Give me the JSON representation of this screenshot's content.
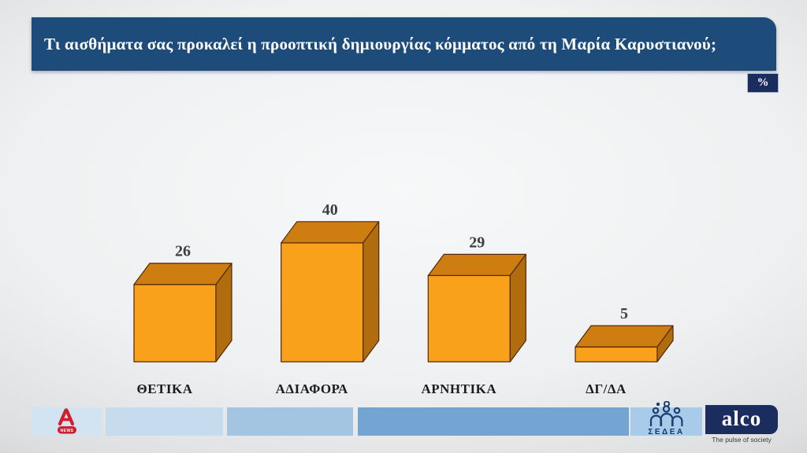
{
  "header": {
    "title": "Τι αισθήματα σας προκαλεί η προοπτική δημιουργίας κόμματος από τη Μαρία Καρυστιανού;",
    "unit_badge": "%"
  },
  "chart_data": {
    "type": "bar",
    "style": "3d-box-bars",
    "title": "Τι αισθήματα σας προκαλεί η προοπτική δημιουργίας κόμματος από τη Μαρία Καρυστιανού;",
    "unit": "%",
    "categories": [
      "ΘΕΤΙΚΑ",
      "ΑΔΙΑΦΟΡΑ",
      "ΑΡΝΗΤΙΚΑ",
      "ΔΓ/ΔΑ"
    ],
    "values": [
      26,
      40,
      29,
      5
    ],
    "value_labels_shown": true,
    "axis": "none",
    "grid": false,
    "legend": "none",
    "bar_color_front": "#F9A11B",
    "bar_color_top": "#CE7D10",
    "bar_color_side": "#B06C0D",
    "bar_outline": "#53290A",
    "value_label_color": "#3E3E3E",
    "category_label_color": "#1C1C1C"
  },
  "footer": {
    "alpha_news_label": "NEWS",
    "sedea_label": "ΣΕΔΕΑ",
    "alco_label": "alco",
    "alco_tagline": "The pulse of society"
  },
  "colors": {
    "header_bg": "#1E4C7A",
    "badge_bg": "#1B2C5F",
    "alco_bg": "#1B2C5F",
    "alpha_red": "#CF1F2E",
    "sedea_navy": "#1D3E6E",
    "footer_segments": [
      "#D2E3F2",
      "#C6DCEE",
      "#A3C5E2",
      "#74A5D2",
      "#A8CBE9"
    ]
  }
}
